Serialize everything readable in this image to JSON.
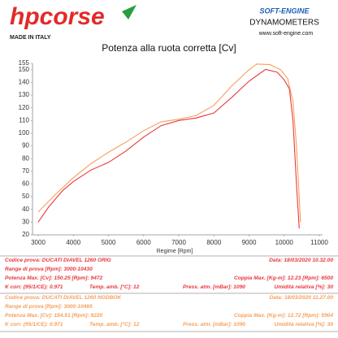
{
  "header": {
    "brand": "hpcorse",
    "made_in": "MADE IN ITALY",
    "dyno_brand": "SOFT-ENGINE",
    "dyno_sub": "DYNAMOMETERS",
    "website": "www.soft-engine.com"
  },
  "chart_data": {
    "type": "line",
    "title": "Potenza alla ruota corretta [Cv]",
    "x_label": "Regime [Rpm]",
    "xlim": [
      3000,
      11000
    ],
    "xticks": [
      3000,
      4000,
      5000,
      6000,
      7000,
      8000,
      9000,
      10000,
      11000
    ],
    "ylim": [
      20,
      155
    ],
    "yticks": [
      20,
      30,
      40,
      50,
      60,
      70,
      80,
      90,
      100,
      110,
      120,
      130,
      140,
      150,
      155
    ],
    "grid": false,
    "series": [
      {
        "color": "#e8383d",
        "x": [
          3000,
          3300,
          3700,
          4000,
          4500,
          5000,
          5500,
          6000,
          6500,
          7000,
          7500,
          8000,
          8500,
          9000,
          9472,
          9800,
          10000,
          10150,
          10250,
          10350,
          10430
        ],
        "values": [
          30,
          42,
          55,
          62,
          71,
          77,
          86,
          97,
          106,
          110,
          112,
          116,
          128,
          141,
          150.25,
          148,
          142,
          135,
          110,
          60,
          25
        ]
      },
      {
        "color": "#f5a05a",
        "x": [
          3000,
          3500,
          4000,
          4500,
          5000,
          5500,
          6000,
          6500,
          7000,
          7500,
          8000,
          8500,
          9000,
          9220,
          9600,
          9900,
          10100,
          10250,
          10350,
          10465
        ],
        "values": [
          38,
          52,
          65,
          76,
          85,
          93,
          102,
          109,
          111,
          114,
          122,
          137,
          150,
          154.51,
          154,
          150,
          143,
          125,
          90,
          30
        ]
      }
    ]
  },
  "tests": [
    {
      "color": "#e8383d",
      "rows": [
        [
          "Codice prova: DUCATI DIAVEL 1260 ORIG",
          "Data: 18/03/2020  10.32.00"
        ],
        [
          "Range di prova [Rpm]: 3000-10430"
        ],
        [
          "Potenza Max. [Cv]: 150.25  [Rpm]: 9472",
          "Coppia Max. [Kg-m]: 12.23  [Rpm]: 6500"
        ],
        [
          "K corr. (95/1/CE): 0.971",
          "Temp. amb. [°C]: 12",
          "Press. atm. [mBar]: 1090",
          "Umidità relativa [%]: 30"
        ]
      ]
    },
    {
      "color": "#f5a05a",
      "rows": [
        [
          "Codice prova: DUCATI DIAVEL 1260 NODBOK",
          "Data: 18/03/2020  11.27.00"
        ],
        [
          "Range di prova [Rpm]: 3000-10465"
        ],
        [
          "Potenza Max. [Cv]: 154.51  [Rpm]: 9220",
          "Coppia Max. [Kg-m]: 12.72  [Rpm]: 5904"
        ],
        [
          "K corr. (95/1/CE): 0.971",
          "Temp. amb. [°C]: 12",
          "Press. atm. [mBar]: 1090",
          "Umidità relativa [%]: 30"
        ]
      ]
    }
  ]
}
